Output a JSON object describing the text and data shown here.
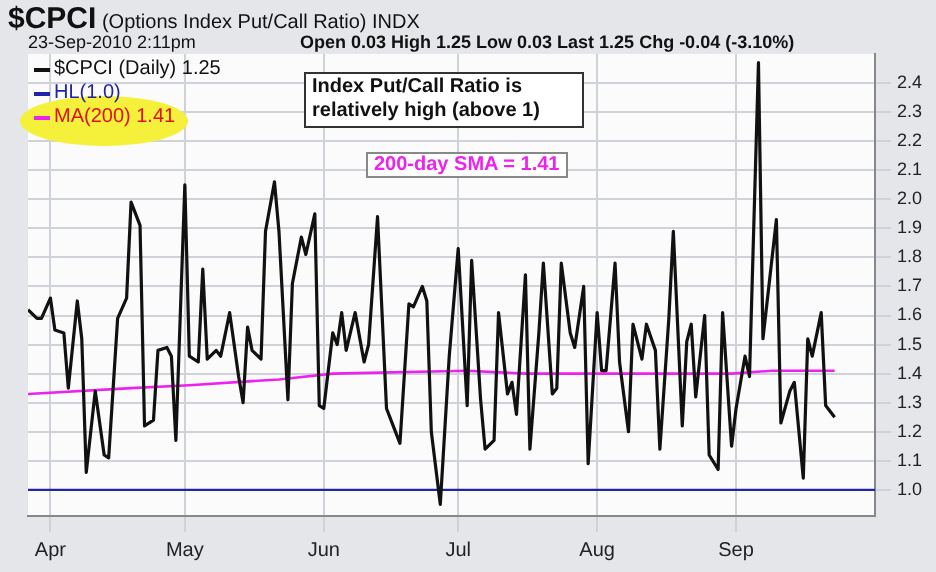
{
  "chart_data": {
    "type": "line",
    "title": "$CPCI (Options Index Put/Call Ratio) INDX",
    "subtitle": "23-Sep-2010 2:11pm",
    "annotations": [
      "Open 0.03  High 1.25  Low 0.03  Last 1.25  Chg -0.04 (-3.10%)",
      "Index Put/Call Ratio is relatively high (above 1)",
      "200-day SMA = 1.41"
    ],
    "xlim": [
      "2010-03-27",
      "2010-10-02"
    ],
    "xticks": [
      {
        "value": "2010-04-01",
        "label": "Apr"
      },
      {
        "value": "2010-05-01",
        "label": "May"
      },
      {
        "value": "2010-06-01",
        "label": "Jun"
      },
      {
        "value": "2010-07-01",
        "label": "Jul"
      },
      {
        "value": "2010-08-01",
        "label": "Aug"
      },
      {
        "value": "2010-09-01",
        "label": "Sep"
      }
    ],
    "ylim": [
      0.91,
      2.5
    ],
    "yticks": [
      {
        "value": 1.0,
        "label": "1.0"
      },
      {
        "value": 1.1,
        "label": "1.1"
      },
      {
        "value": 1.2,
        "label": "1.2"
      },
      {
        "value": 1.3,
        "label": "1.3"
      },
      {
        "value": 1.4,
        "label": "1.4"
      },
      {
        "value": 1.5,
        "label": "1.5"
      },
      {
        "value": 1.6,
        "label": "1.6"
      },
      {
        "value": 1.7,
        "label": "1.7"
      },
      {
        "value": 1.8,
        "label": "1.8"
      },
      {
        "value": 1.9,
        "label": "1.9"
      },
      {
        "value": 2.0,
        "label": "2.0"
      },
      {
        "value": 2.1,
        "label": "2.1"
      },
      {
        "value": 2.2,
        "label": "2.2"
      },
      {
        "value": 2.3,
        "label": "2.3"
      },
      {
        "value": 2.4,
        "label": "2.4"
      }
    ],
    "grid": true,
    "legend": "top left",
    "marker": "none",
    "line_style": "solid",
    "ref_lines": [
      {
        "axis": "y",
        "value": 1.0,
        "label": "HL(1.0)",
        "color": "#2222aa"
      }
    ],
    "series": [
      {
        "name": "$CPCI (Daily) 1.25",
        "color": "#111111",
        "x": [
          "2010-03-27",
          "2010-03-29",
          "2010-03-30",
          "2010-04-01",
          "2010-04-02",
          "2010-04-04",
          "2010-04-05",
          "2010-04-07",
          "2010-04-08",
          "2010-04-09",
          "2010-04-11",
          "2010-04-13",
          "2010-04-14",
          "2010-04-16",
          "2010-04-18",
          "2010-04-19",
          "2010-04-21",
          "2010-04-22",
          "2010-04-24",
          "2010-04-25",
          "2010-04-27",
          "2010-04-28",
          "2010-04-29",
          "2010-05-01",
          "2010-05-02",
          "2010-05-04",
          "2010-05-05",
          "2010-05-06",
          "2010-05-08",
          "2010-05-09",
          "2010-05-11",
          "2010-05-13",
          "2010-05-14",
          "2010-05-15",
          "2010-05-16",
          "2010-05-18",
          "2010-05-19",
          "2010-05-21",
          "2010-05-22",
          "2010-05-24",
          "2010-05-25",
          "2010-05-27",
          "2010-05-28",
          "2010-05-30",
          "2010-05-31",
          "2010-06-01",
          "2010-06-03",
          "2010-06-04",
          "2010-06-05",
          "2010-06-06",
          "2010-06-08",
          "2010-06-10",
          "2010-06-11",
          "2010-06-13",
          "2010-06-15",
          "2010-06-16",
          "2010-06-18",
          "2010-06-20",
          "2010-06-21",
          "2010-06-23",
          "2010-06-24",
          "2010-06-25",
          "2010-06-27",
          "2010-06-29",
          "2010-07-01",
          "2010-07-03",
          "2010-07-04",
          "2010-07-06",
          "2010-07-07",
          "2010-07-09",
          "2010-07-10",
          "2010-07-12",
          "2010-07-13",
          "2010-07-14",
          "2010-07-16",
          "2010-07-17",
          "2010-07-19",
          "2010-07-20",
          "2010-07-22",
          "2010-07-23",
          "2010-07-24",
          "2010-07-26",
          "2010-07-27",
          "2010-07-29",
          "2010-07-30",
          "2010-08-01",
          "2010-08-02",
          "2010-08-03",
          "2010-08-05",
          "2010-08-06",
          "2010-08-08",
          "2010-08-09",
          "2010-08-11",
          "2010-08-12",
          "2010-08-14",
          "2010-08-15",
          "2010-08-17",
          "2010-08-18",
          "2010-08-20",
          "2010-08-21",
          "2010-08-22",
          "2010-08-23",
          "2010-08-25",
          "2010-08-26",
          "2010-08-28",
          "2010-08-29",
          "2010-08-31",
          "2010-09-01",
          "2010-09-03",
          "2010-09-04",
          "2010-09-06",
          "2010-09-07",
          "2010-09-10",
          "2010-09-11",
          "2010-09-13",
          "2010-09-14",
          "2010-09-16",
          "2010-09-17",
          "2010-09-18",
          "2010-09-20",
          "2010-09-21",
          "2010-09-23"
        ],
        "values": [
          1.62,
          1.59,
          1.59,
          1.66,
          1.55,
          1.54,
          1.35,
          1.65,
          1.52,
          1.06,
          1.34,
          1.12,
          1.11,
          1.59,
          1.66,
          1.99,
          1.91,
          1.22,
          1.24,
          1.48,
          1.49,
          1.46,
          1.17,
          2.05,
          1.46,
          1.44,
          1.76,
          1.45,
          1.48,
          1.46,
          1.61,
          1.39,
          1.3,
          1.56,
          1.48,
          1.45,
          1.89,
          2.06,
          1.89,
          1.31,
          1.71,
          1.87,
          1.81,
          1.95,
          1.29,
          1.28,
          1.54,
          1.5,
          1.61,
          1.48,
          1.61,
          1.44,
          1.5,
          1.94,
          1.28,
          1.24,
          1.16,
          1.64,
          1.63,
          1.7,
          1.65,
          1.2,
          0.95,
          1.46,
          1.83,
          1.29,
          1.79,
          1.31,
          1.14,
          1.17,
          1.61,
          1.33,
          1.37,
          1.26,
          1.74,
          1.14,
          1.54,
          1.78,
          1.33,
          1.35,
          1.78,
          1.54,
          1.49,
          1.7,
          1.09,
          1.61,
          1.41,
          1.41,
          1.78,
          1.44,
          1.2,
          1.57,
          1.45,
          1.57,
          1.48,
          1.14,
          1.59,
          1.89,
          1.22,
          1.51,
          1.57,
          1.32,
          1.6,
          1.12,
          1.07,
          1.61,
          1.15,
          1.28,
          1.46,
          1.39,
          2.47,
          1.52,
          1.93,
          1.23,
          1.34,
          1.37,
          1.04,
          1.52,
          1.46,
          1.61,
          1.29,
          1.25
        ]
      },
      {
        "name": "MA(200) 1.41",
        "color": "#ee22ee",
        "x": [
          "2010-03-27",
          "2010-04-19",
          "2010-05-02",
          "2010-05-22",
          "2010-06-03",
          "2010-07-03",
          "2010-07-16",
          "2010-07-31",
          "2010-08-31",
          "2010-09-09",
          "2010-09-23"
        ],
        "values": [
          1.33,
          1.35,
          1.36,
          1.38,
          1.4,
          1.41,
          1.4,
          1.4,
          1.4,
          1.41,
          1.41
        ]
      }
    ]
  }
}
